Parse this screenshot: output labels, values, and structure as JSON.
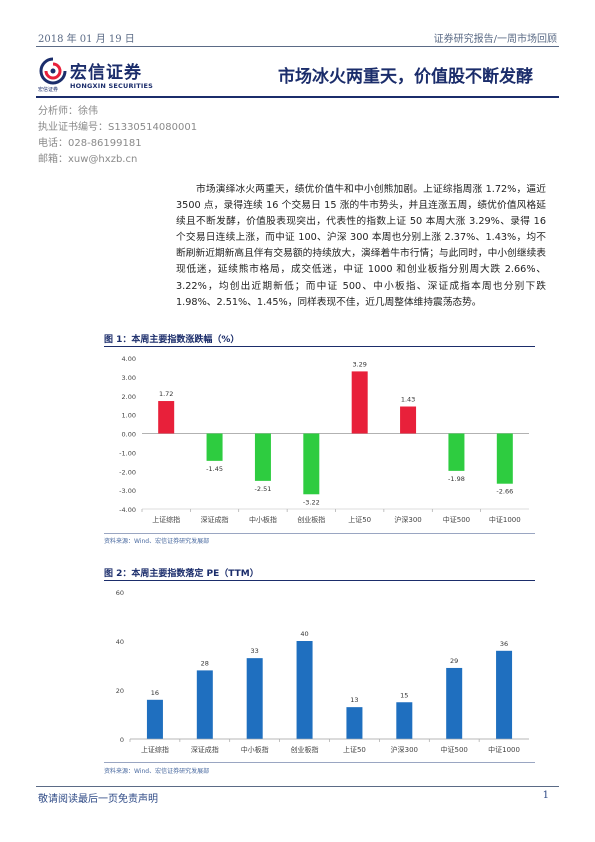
{
  "header": {
    "date": "2018 年 01 月 19 日",
    "report_type": "证券研究报告/一周市场回顾"
  },
  "logo": {
    "name_cn": "宏信证券",
    "name_en": "HONGXIN SECURITIES",
    "small_en": "宏信证券"
  },
  "title": "市场冰火两重天，价值股不断发酵",
  "analyst": {
    "name": "分析师：徐伟",
    "license": "执业证书编号：S1330514080001",
    "phone": "电话：028-86199181",
    "email": "邮箱：xuw@hxzb.cn"
  },
  "body_text": "市场演绎冰火两重天，绩优价值牛和中小创熊加剧。上证综指周涨 1.72%，逼近 3500 点，录得连续 16 个交易日 15 涨的牛市势头，并且连涨五周，绩优价值风格延续且不断发酵，价值股表现突出，代表性的指数上证 50 本周大涨 3.29%、录得 16 个交易日连续上涨，而中证 100、沪深 300 本周也分别上涨 2.37%、1.43%，均不断刷新近期新高且伴有交易额的持续放大，演绎着牛市行情；与此同时，中小创继续表现低迷，延续熊市格局，成交低迷，中证 1000 和创业板指分别周大跌 2.66%、3.22%，均创出近期新低；而中证 500、中小板指、深证成指本周也分别下跌 1.98%、2.51%、1.45%，同样表现不佳，近几周整体维持震荡态势。",
  "figure1": {
    "title": "图 1：本周主要指数涨跌幅（%）",
    "source": "资料来源：Wind、宏信证券研究发展部"
  },
  "figure2": {
    "title": "图 2：本周主要指数落定 PE（TTM）",
    "source": "资料来源：Wind、宏信证券研究发展部"
  },
  "chart_data": [
    {
      "type": "bar",
      "categories": [
        "上证综指",
        "深证成指",
        "中小板指",
        "创业板指",
        "上证50",
        "沪深300",
        "中证500",
        "中证1000"
      ],
      "values": [
        1.72,
        -1.45,
        -2.51,
        -3.22,
        3.29,
        1.43,
        -1.98,
        -2.66
      ],
      "value_labels": [
        "1.72",
        "-1.45",
        "-2.51",
        "-3.22",
        "3.29",
        "1.43",
        "-1.98",
        "-2.66"
      ],
      "ylim": [
        -4,
        4
      ],
      "yticks": [
        "4.00",
        "3.00",
        "2.00",
        "1.00",
        "0.00",
        "-1.00",
        "-2.00",
        "-3.00",
        "-4.00"
      ],
      "colors": {
        "positive": "#e8203a",
        "negative": "#2ecc40"
      },
      "grid": false
    },
    {
      "type": "bar",
      "categories": [
        "上证综指",
        "深证成指",
        "中小板指",
        "创业板指",
        "上证50",
        "沪深300",
        "中证500",
        "中证1000"
      ],
      "values": [
        16,
        28,
        33,
        40,
        13,
        15,
        29,
        36
      ],
      "value_labels": [
        "16",
        "28",
        "33",
        "40",
        "13",
        "15",
        "29",
        "36"
      ],
      "ylim": [
        0,
        60
      ],
      "yticks": [
        "60",
        "40",
        "20",
        "0"
      ],
      "colors": {
        "bar": "#1f6fbf"
      },
      "grid": false
    }
  ],
  "footer": {
    "disclaimer": "敬请阅读最后一页免责声明",
    "page": "1"
  }
}
